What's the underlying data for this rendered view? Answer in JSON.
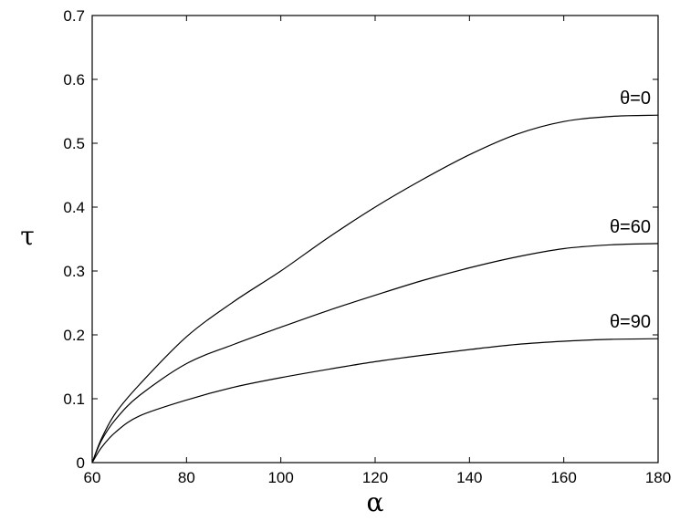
{
  "chart_data": {
    "type": "line",
    "xlabel": "α",
    "ylabel": "τ",
    "xlim": [
      60,
      180
    ],
    "ylim": [
      0,
      0.7
    ],
    "xticks": [
      60,
      80,
      100,
      120,
      140,
      160,
      180
    ],
    "yticks": [
      0,
      0.1,
      0.2,
      0.3,
      0.4,
      0.5,
      0.6,
      0.7
    ],
    "xtick_labels": [
      "60",
      "80",
      "100",
      "120",
      "140",
      "160",
      "180"
    ],
    "ytick_labels": [
      "0",
      "0.1",
      "0.2",
      "0.3",
      "0.4",
      "0.5",
      "0.6",
      "0.7"
    ],
    "grid": false,
    "series": [
      {
        "name": "θ=0",
        "x": [
          60,
          62,
          65,
          70,
          80,
          90,
          100,
          110,
          120,
          130,
          140,
          150,
          160,
          170,
          180
        ],
        "y": [
          0,
          0.038,
          0.078,
          0.122,
          0.197,
          0.252,
          0.3,
          0.352,
          0.4,
          0.443,
          0.482,
          0.514,
          0.534,
          0.542,
          0.544
        ]
      },
      {
        "name": "θ=60",
        "x": [
          60,
          62,
          65,
          70,
          80,
          90,
          100,
          110,
          120,
          130,
          140,
          150,
          160,
          170,
          180
        ],
        "y": [
          0,
          0.035,
          0.068,
          0.105,
          0.155,
          0.185,
          0.212,
          0.238,
          0.262,
          0.285,
          0.305,
          0.322,
          0.335,
          0.341,
          0.343
        ]
      },
      {
        "name": "θ=90",
        "x": [
          60,
          62,
          65,
          70,
          80,
          90,
          100,
          110,
          120,
          130,
          140,
          150,
          160,
          170,
          180
        ],
        "y": [
          0,
          0.024,
          0.048,
          0.073,
          0.098,
          0.118,
          0.133,
          0.146,
          0.158,
          0.168,
          0.177,
          0.185,
          0.19,
          0.193,
          0.194
        ]
      }
    ]
  }
}
